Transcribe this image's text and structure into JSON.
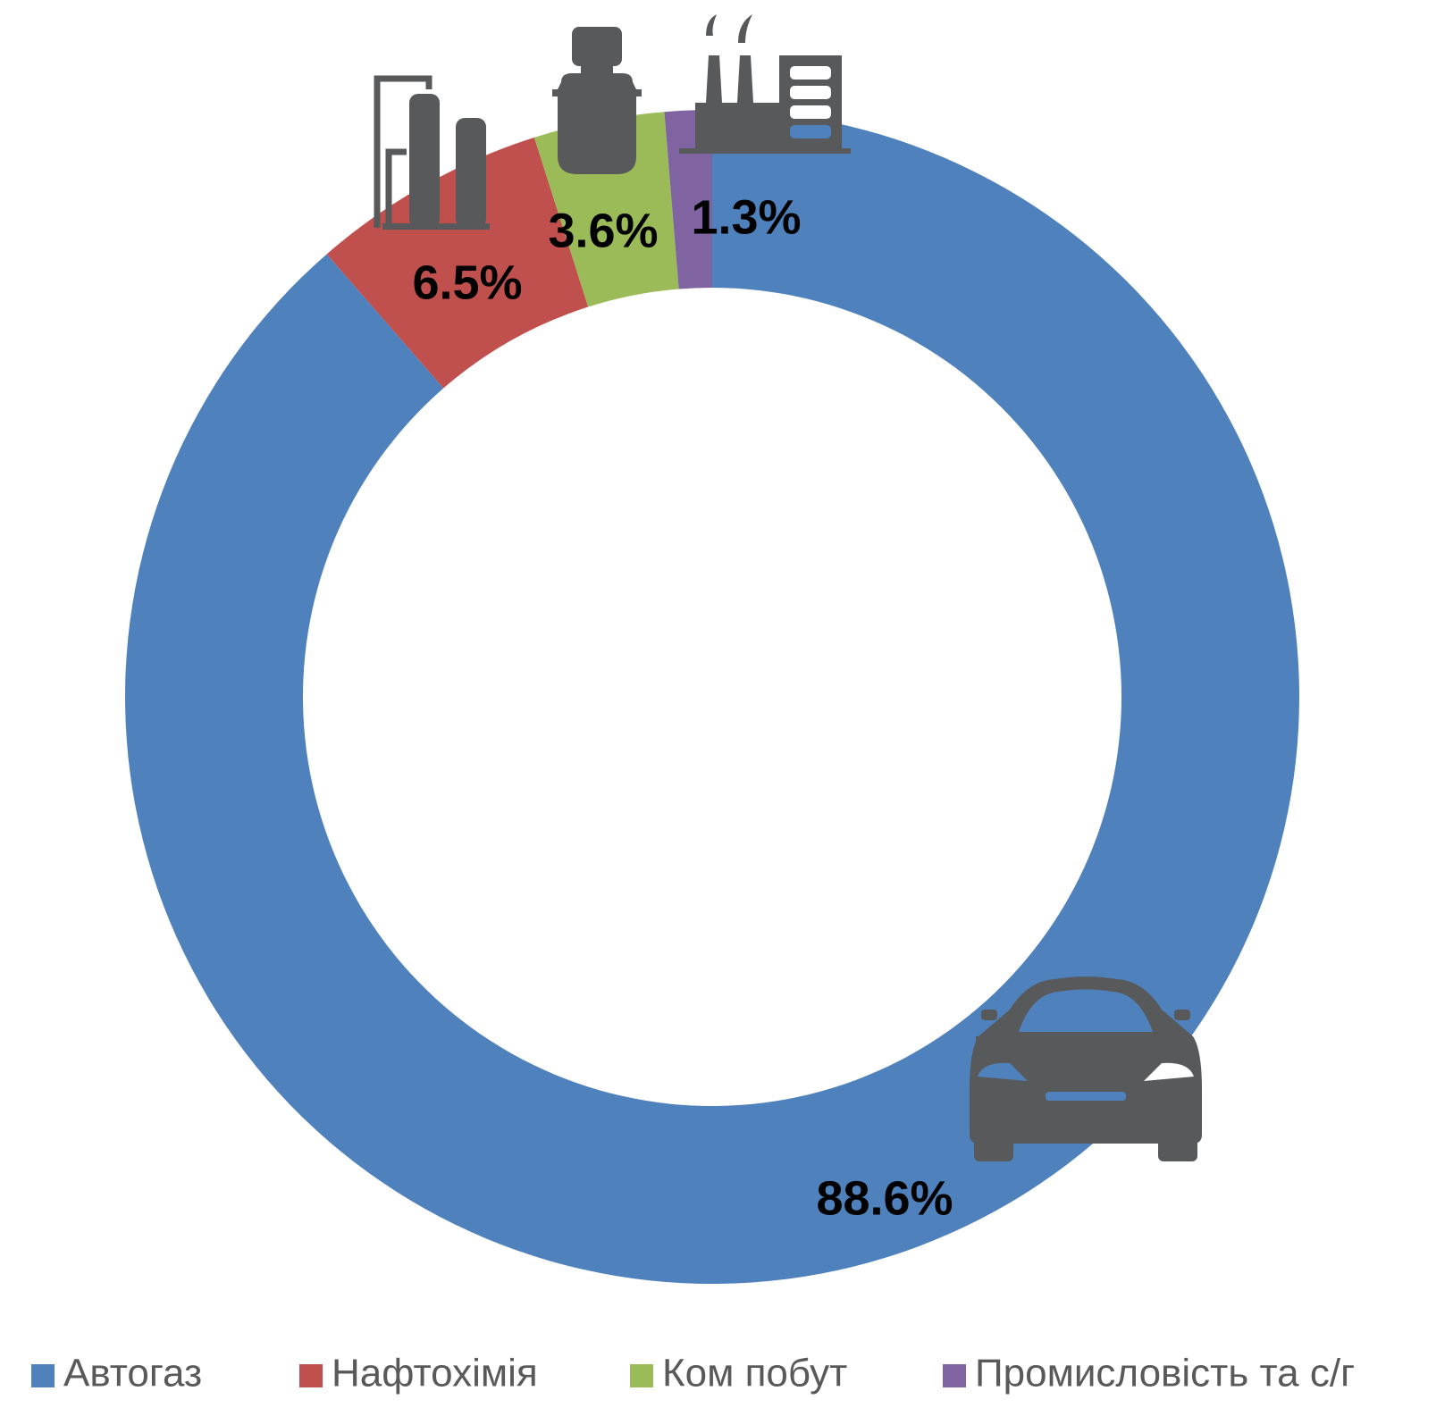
{
  "chart_data": {
    "type": "donut",
    "categories": [
      "Автогаз",
      "Нафтохімія",
      "Ком побут",
      "Промисловість та с/г"
    ],
    "values": [
      88.6,
      6.5,
      3.6,
      1.3
    ],
    "value_labels": [
      "88.6%",
      "6.5%",
      "3.6%",
      "1.3%"
    ],
    "colors": [
      "#4f81bd",
      "#c0504d",
      "#9bbb59",
      "#8064a2"
    ],
    "legend": "bottom"
  }
}
